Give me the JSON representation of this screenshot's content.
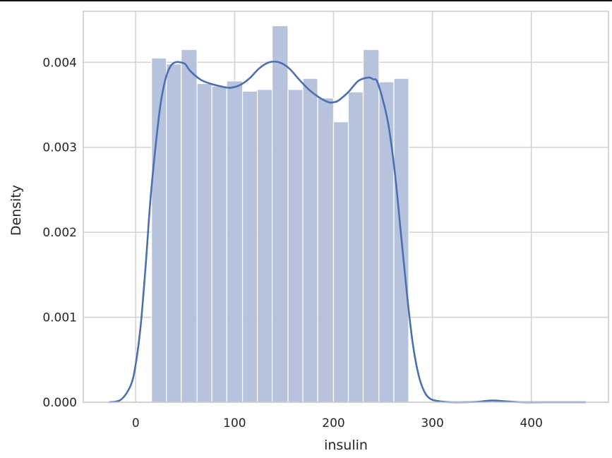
{
  "chart_data": {
    "type": "histogram",
    "title": "",
    "xlabel": "insulin",
    "ylabel": "Density",
    "xlim": [
      -53,
      478
    ],
    "ylim": [
      0,
      0.0046
    ],
    "x_ticks": [
      0,
      100,
      200,
      300,
      400
    ],
    "x_tick_labels": [
      "0",
      "100",
      "200",
      "300",
      "400"
    ],
    "y_ticks": [
      0,
      0.001,
      0.002,
      0.003,
      0.004
    ],
    "y_tick_labels": [
      "0.000",
      "0.001",
      "0.002",
      "0.003",
      "0.004"
    ],
    "grid": true,
    "colors": {
      "bar_fill": "#b3c0db",
      "bar_edge": "#ffffff",
      "kde_line": "#4c6faf",
      "grid": "#d3d3d3",
      "spine": "#cccccc",
      "text": "#262626"
    },
    "bins": [
      {
        "x0": 16,
        "x1": 31,
        "density": 0.00405
      },
      {
        "x0": 31,
        "x1": 46,
        "density": 0.00398
      },
      {
        "x0": 46,
        "x1": 62,
        "density": 0.00415
      },
      {
        "x0": 62,
        "x1": 77,
        "density": 0.00375
      },
      {
        "x0": 77,
        "x1": 92,
        "density": 0.00372
      },
      {
        "x0": 92,
        "x1": 108,
        "density": 0.00378
      },
      {
        "x0": 108,
        "x1": 123,
        "density": 0.00366
      },
      {
        "x0": 123,
        "x1": 138,
        "density": 0.00368
      },
      {
        "x0": 138,
        "x1": 154,
        "density": 0.00443
      },
      {
        "x0": 154,
        "x1": 169,
        "density": 0.00368
      },
      {
        "x0": 169,
        "x1": 184,
        "density": 0.00381
      },
      {
        "x0": 184,
        "x1": 200,
        "density": 0.00358
      },
      {
        "x0": 200,
        "x1": 215,
        "density": 0.0033
      },
      {
        "x0": 215,
        "x1": 230,
        "density": 0.00365
      },
      {
        "x0": 230,
        "x1": 246,
        "density": 0.00415
      },
      {
        "x0": 246,
        "x1": 261,
        "density": 0.00377
      },
      {
        "x0": 261,
        "x1": 276,
        "density": 0.00381
      }
    ],
    "kde": {
      "x": [
        -27,
        -15,
        -5,
        0,
        5,
        10,
        15,
        20,
        25,
        30,
        35,
        40,
        45,
        50,
        55,
        65,
        75,
        85,
        95,
        105,
        115,
        125,
        135,
        145,
        155,
        165,
        175,
        185,
        195,
        200,
        205,
        215,
        225,
        235,
        240,
        245,
        255,
        262,
        268,
        274,
        280,
        286,
        292,
        298,
        305,
        312,
        320,
        330,
        345,
        360,
        375,
        390,
        410,
        430,
        455
      ],
      "y": [
        0.0,
        3e-05,
        0.0002,
        0.00045,
        0.0009,
        0.0016,
        0.0024,
        0.003,
        0.0035,
        0.0038,
        0.00395,
        0.004,
        0.004,
        0.00398,
        0.0039,
        0.0038,
        0.00375,
        0.00372,
        0.0037,
        0.00373,
        0.00381,
        0.00393,
        0.004,
        0.004,
        0.00393,
        0.0038,
        0.00368,
        0.00359,
        0.00353,
        0.00353,
        0.00355,
        0.00365,
        0.00378,
        0.00382,
        0.0038,
        0.00375,
        0.0033,
        0.0027,
        0.002,
        0.0013,
        0.0007,
        0.00032,
        0.00012,
        4e-05,
        1.5e-05,
        5e-06,
        0.0,
        0.0,
        4e-06,
        2e-05,
        1e-05,
        0.0,
        0.0,
        0.0,
        0.0
      ]
    }
  }
}
